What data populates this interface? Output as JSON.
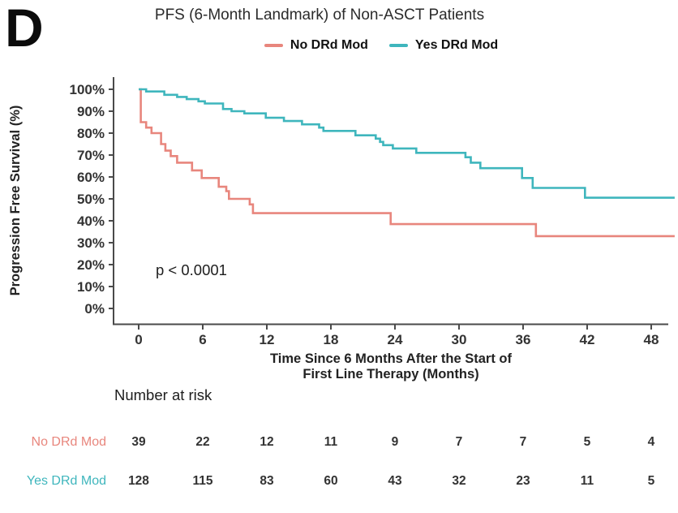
{
  "panel_label": "D",
  "title": "PFS (6-Month Landmark) of Non-ASCT Patients",
  "legend": [
    {
      "label": "No DRd Mod",
      "color": "#E8867D"
    },
    {
      "label": "Yes DRd Mod",
      "color": "#3FB6BD"
    }
  ],
  "annotation": {
    "p_value": "p < 0.0001"
  },
  "axes": {
    "y_label": "Progression Free Survival (%)",
    "x_label_line1": "Time Since 6 Months After the Start of",
    "x_label_line2": "First Line Therapy (Months)",
    "x_ticks": [
      0,
      6,
      12,
      18,
      24,
      30,
      36,
      42,
      48
    ],
    "y_ticks": [
      "100%",
      "90%",
      "80%",
      "70%",
      "60%",
      "50%",
      "40%",
      "30%",
      "20%",
      "10%",
      "0%"
    ]
  },
  "risk_table": {
    "heading": "Number at risk",
    "rows": [
      {
        "label": "No DRd Mod",
        "color": "#E8867D",
        "values": [
          "39",
          "22",
          "12",
          "11",
          "9",
          "7",
          "7",
          "5",
          "4"
        ]
      },
      {
        "label": "Yes DRd Mod",
        "color": "#3FB6BD",
        "values": [
          "128",
          "115",
          "83",
          "60",
          "43",
          "32",
          "23",
          "11",
          "5"
        ]
      }
    ]
  },
  "chart_data": {
    "type": "line",
    "subtype": "kaplan-meier-step",
    "title": "PFS (6-Month Landmark) of Non-ASCT Patients",
    "xlabel": "Time Since 6 Months After the Start of First Line Therapy (Months)",
    "ylabel": "Progression Free Survival (%)",
    "xlim": [
      0,
      50.2
    ],
    "ylim": [
      0,
      100
    ],
    "x_ticks": [
      0,
      6,
      12,
      18,
      24,
      30,
      36,
      42,
      48
    ],
    "y_tick_step": 10,
    "grid": false,
    "legend_position": "top",
    "p_value": "p < 0.0001",
    "series": [
      {
        "name": "No DRd Mod",
        "color": "#E8867D",
        "n": 39,
        "points": [
          [
            0,
            100
          ],
          [
            0.2,
            85
          ],
          [
            0.7,
            82.5
          ],
          [
            1.2,
            80
          ],
          [
            2.1,
            75
          ],
          [
            2.5,
            72
          ],
          [
            3.0,
            69.5
          ],
          [
            3.6,
            66.5
          ],
          [
            5.0,
            63
          ],
          [
            5.9,
            59.5
          ],
          [
            7.5,
            55.5
          ],
          [
            8.2,
            53.5
          ],
          [
            8.45,
            50
          ],
          [
            10.4,
            47.5
          ],
          [
            10.7,
            43.5
          ],
          [
            23.6,
            38.5
          ],
          [
            37.2,
            33
          ],
          [
            50.2,
            33
          ]
        ]
      },
      {
        "name": "Yes DRd Mod",
        "color": "#3FB6BD",
        "n": 128,
        "points": [
          [
            0,
            100
          ],
          [
            0.7,
            99
          ],
          [
            2.4,
            97.5
          ],
          [
            3.6,
            96.5
          ],
          [
            4.5,
            95.5
          ],
          [
            5.6,
            94.5
          ],
          [
            6.2,
            93.5
          ],
          [
            7.9,
            91
          ],
          [
            8.7,
            90
          ],
          [
            9.9,
            89
          ],
          [
            11.9,
            87
          ],
          [
            13.6,
            85.5
          ],
          [
            15.3,
            84
          ],
          [
            16.9,
            82.5
          ],
          [
            17.3,
            81
          ],
          [
            20.3,
            79
          ],
          [
            22.2,
            77.5
          ],
          [
            22.6,
            76
          ],
          [
            22.9,
            74.5
          ],
          [
            23.8,
            73
          ],
          [
            26,
            71
          ],
          [
            30.6,
            69
          ],
          [
            31.1,
            66.5
          ],
          [
            32,
            64
          ],
          [
            35.9,
            59.5
          ],
          [
            36.9,
            55
          ],
          [
            41.8,
            50.5
          ],
          [
            50.2,
            50.5
          ]
        ]
      }
    ],
    "risk_table": {
      "heading": "Number at risk",
      "times": [
        0,
        6,
        12,
        18,
        24,
        30,
        36,
        42,
        48
      ],
      "rows": [
        {
          "name": "No DRd Mod",
          "counts": [
            39,
            22,
            12,
            11,
            9,
            7,
            7,
            5,
            4
          ]
        },
        {
          "name": "Yes DRd Mod",
          "counts": [
            128,
            115,
            83,
            60,
            43,
            32,
            23,
            11,
            5
          ]
        }
      ]
    }
  }
}
